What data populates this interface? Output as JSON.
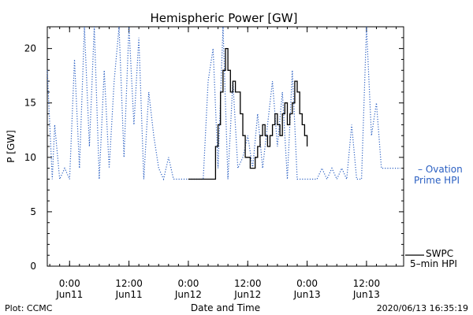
{
  "chart_data": {
    "type": "line",
    "title": "Hemispheric Power [GW]",
    "xlabel": "Date and Time",
    "ylabel": "P [GW]",
    "ylim": [
      0,
      22
    ],
    "xlim_hours_label": "Jun 10 19:30 to Jun 13 19:30",
    "y_ticks": [
      0,
      5,
      10,
      15,
      20
    ],
    "x_ticks": [
      {
        "time": "0:00",
        "date": "Jun11",
        "t": "2020-06-11T00:00"
      },
      {
        "time": "12:00",
        "date": "Jun11",
        "t": "2020-06-11T12:00"
      },
      {
        "time": "0:00",
        "date": "Jun12",
        "t": "2020-06-12T00:00"
      },
      {
        "time": "12:00",
        "date": "Jun12",
        "t": "2020-06-12T12:00"
      },
      {
        "time": "0:00",
        "date": "Jun13",
        "t": "2020-06-13T00:00"
      },
      {
        "time": "12:00",
        "date": "Jun13",
        "t": "2020-06-13T12:00"
      }
    ],
    "x_start": "2020-06-10T19:30",
    "x_end": "2020-06-13T19:30",
    "legend": {
      "ovation": {
        "prefix": "– Ovation",
        "line2": "Prime HPI"
      },
      "swpc": {
        "line1": "SWPC",
        "line2": "5–min HPI"
      }
    },
    "series": [
      {
        "name": "Ovation Prime HPI",
        "color": "#2a5fc2",
        "style": "dotted",
        "t": [
          "2020-06-10T19:30",
          "2020-06-10T20:30",
          "2020-06-10T21:00",
          "2020-06-10T22:00",
          "2020-06-10T23:00",
          "2020-06-11T00:00",
          "2020-06-11T01:00",
          "2020-06-11T02:00",
          "2020-06-11T03:00",
          "2020-06-11T04:00",
          "2020-06-11T05:00",
          "2020-06-11T06:00",
          "2020-06-11T07:00",
          "2020-06-11T08:00",
          "2020-06-11T09:00",
          "2020-06-11T10:00",
          "2020-06-11T11:00",
          "2020-06-11T12:00",
          "2020-06-11T13:00",
          "2020-06-11T14:00",
          "2020-06-11T15:00",
          "2020-06-11T16:00",
          "2020-06-11T17:00",
          "2020-06-11T18:00",
          "2020-06-11T19:00",
          "2020-06-11T20:00",
          "2020-06-11T21:00",
          "2020-06-11T22:00",
          "2020-06-11T23:00",
          "2020-06-12T00:00",
          "2020-06-12T01:00",
          "2020-06-12T02:00",
          "2020-06-12T03:00",
          "2020-06-12T04:00",
          "2020-06-12T05:00",
          "2020-06-12T06:00",
          "2020-06-12T07:00",
          "2020-06-12T08:00",
          "2020-06-12T09:00",
          "2020-06-12T10:00",
          "2020-06-12T11:00",
          "2020-06-12T12:00",
          "2020-06-12T13:00",
          "2020-06-12T14:00",
          "2020-06-12T15:00",
          "2020-06-12T16:00",
          "2020-06-12T17:00",
          "2020-06-12T18:00",
          "2020-06-12T19:00",
          "2020-06-12T20:00",
          "2020-06-12T21:00",
          "2020-06-12T22:00",
          "2020-06-12T23:00",
          "2020-06-13T00:00",
          "2020-06-13T01:00",
          "2020-06-13T02:00",
          "2020-06-13T03:00",
          "2020-06-13T04:00",
          "2020-06-13T05:00",
          "2020-06-13T06:00",
          "2020-06-13T07:00",
          "2020-06-13T08:00",
          "2020-06-13T09:00",
          "2020-06-13T10:00",
          "2020-06-13T11:00",
          "2020-06-13T12:00",
          "2020-06-13T13:00",
          "2020-06-13T14:00",
          "2020-06-13T15:00",
          "2020-06-13T16:00"
        ],
        "values": [
          18,
          8,
          13,
          8,
          9,
          8,
          19,
          9,
          22,
          11,
          22,
          8,
          18,
          9,
          17,
          22,
          10,
          22,
          13,
          21,
          8,
          16,
          12,
          9,
          8,
          10,
          8,
          8,
          8,
          8,
          8,
          8,
          8,
          17,
          20,
          9,
          22,
          8,
          17,
          9,
          10,
          12,
          9,
          14,
          9,
          13,
          17,
          11,
          16,
          8,
          18,
          8,
          8,
          8,
          8,
          8,
          9,
          8,
          9,
          8,
          9,
          8,
          13,
          8,
          8,
          22,
          12,
          15,
          9,
          9
        ]
      },
      {
        "name": "SWPC 5-min HPI",
        "color": "#000000",
        "style": "solid",
        "t": [
          "2020-06-12T00:00",
          "2020-06-12T05:00",
          "2020-06-12T05:30",
          "2020-06-12T06:00",
          "2020-06-12T06:30",
          "2020-06-12T07:00",
          "2020-06-12T07:30",
          "2020-06-12T08:00",
          "2020-06-12T08:30",
          "2020-06-12T09:00",
          "2020-06-12T09:30",
          "2020-06-12T10:00",
          "2020-06-12T10:30",
          "2020-06-12T11:00",
          "2020-06-12T11:30",
          "2020-06-12T12:00",
          "2020-06-12T12:30",
          "2020-06-12T13:00",
          "2020-06-12T13:30",
          "2020-06-12T14:00",
          "2020-06-12T14:30",
          "2020-06-12T15:00",
          "2020-06-12T15:30",
          "2020-06-12T16:00",
          "2020-06-12T16:30",
          "2020-06-12T17:00",
          "2020-06-12T17:30",
          "2020-06-12T18:00",
          "2020-06-12T18:30",
          "2020-06-12T19:00",
          "2020-06-12T19:30",
          "2020-06-12T20:00",
          "2020-06-12T20:30",
          "2020-06-12T21:00",
          "2020-06-12T21:30",
          "2020-06-12T22:00",
          "2020-06-12T22:30",
          "2020-06-12T23:00",
          "2020-06-12T23:30",
          "2020-06-13T00:00"
        ],
        "values": [
          8,
          8,
          11,
          13,
          16,
          18,
          20,
          18,
          16,
          17,
          16,
          16,
          14,
          12,
          10,
          10,
          9,
          9,
          10,
          11,
          12,
          13,
          12,
          11,
          12,
          13,
          14,
          13,
          12,
          14,
          15,
          13,
          14,
          15,
          17,
          16,
          14,
          13,
          12,
          11
        ]
      }
    ]
  },
  "footer": {
    "left": "Plot: CCMC",
    "right": "2020/06/13 16:35:19"
  }
}
